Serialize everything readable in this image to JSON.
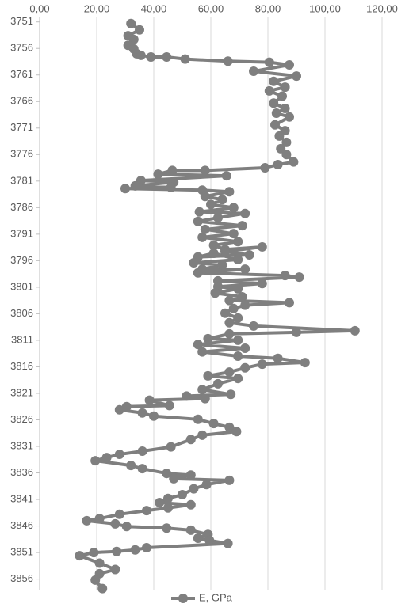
{
  "chart_data": {
    "type": "line",
    "inverted_y": true,
    "grid": "vertical",
    "legend": "bottom",
    "xlim": [
      0,
      120
    ],
    "xticks": [
      {
        "value": 0,
        "label": "0,00"
      },
      {
        "value": 20,
        "label": "20,00"
      },
      {
        "value": 40,
        "label": "40,00"
      },
      {
        "value": 60,
        "label": "60,00"
      },
      {
        "value": 80,
        "label": "80,00"
      },
      {
        "value": 100,
        "label": "100,00"
      },
      {
        "value": 120,
        "label": "120,00"
      }
    ],
    "ylim": [
      3750,
      3858
    ],
    "yticks": [
      3751,
      3756,
      3761,
      3766,
      3771,
      3776,
      3781,
      3786,
      3791,
      3796,
      3801,
      3806,
      3811,
      3816,
      3821,
      3826,
      3831,
      3836,
      3841,
      3846,
      3851,
      3856
    ],
    "series": [
      {
        "name": "E, GPa",
        "color": "#7f7f7f",
        "x": [
          32,
          35,
          31,
          33,
          31,
          33,
          34,
          35.5,
          39,
          44.5,
          51,
          66,
          80.5,
          87.5,
          75,
          90,
          82,
          86,
          80.5,
          85,
          82,
          86,
          83,
          87.5,
          82.5,
          86,
          84,
          86.5,
          84.5,
          86.5,
          89,
          83.5,
          79,
          58,
          46.5,
          41.5,
          65.5,
          35.5,
          47,
          33.5,
          46,
          30,
          57,
          66.5,
          58,
          64,
          60,
          68,
          56,
          72,
          62.5,
          55.5,
          71,
          58,
          68,
          57,
          69.5,
          61,
          65,
          78,
          65,
          73.5,
          55.5,
          61,
          69.5,
          54,
          64,
          57,
          72,
          55.5,
          86,
          91,
          62.5,
          78,
          62.5,
          69.5,
          61.5,
          71,
          66.5,
          87.5,
          72,
          68,
          65,
          69.5,
          66.5,
          75,
          110.5,
          90,
          66.5,
          59,
          69.5,
          55.5,
          72,
          57,
          69.5,
          83.5,
          93,
          78,
          72,
          66.5,
          59,
          69.5,
          62.5,
          57,
          67,
          51.5,
          58,
          38.5,
          45.5,
          30.5,
          28,
          36,
          40,
          55.5,
          61,
          66.5,
          69,
          57,
          53,
          46,
          36,
          28,
          23.5,
          19.5,
          32,
          36,
          44.5,
          53,
          47,
          66.5,
          58.5,
          54,
          50,
          45,
          42,
          53,
          45,
          37.5,
          28,
          21,
          16.5,
          26.5,
          30.5,
          44.5,
          53,
          59,
          55.5,
          59.5,
          66,
          37.5,
          33.5,
          27,
          19,
          14,
          21,
          26.5,
          21,
          19.5,
          22
        ],
        "y": [
          3751.3,
          3752.5,
          3753.6,
          3754.3,
          3755.4,
          3756.1,
          3757,
          3757.3,
          3757.6,
          3757.6,
          3758,
          3758.4,
          3758.6,
          3759.1,
          3760.3,
          3761.2,
          3762.2,
          3763.3,
          3764,
          3765,
          3766.3,
          3767.3,
          3768.2,
          3768.9,
          3770.4,
          3771.5,
          3772.5,
          3773.7,
          3774.9,
          3776,
          3777.4,
          3777.9,
          3778.5,
          3779,
          3779,
          3779.7,
          3780,
          3780.9,
          3781.2,
          3781.9,
          3782.2,
          3782.4,
          3782.7,
          3783,
          3783.9,
          3784.5,
          3785.4,
          3786,
          3786.8,
          3787.1,
          3787.9,
          3788.6,
          3789.4,
          3790.1,
          3790.9,
          3791.6,
          3792.4,
          3793.1,
          3793.9,
          3793.4,
          3794.3,
          3794.9,
          3795.3,
          3794.6,
          3795.8,
          3796.4,
          3796.8,
          3797.6,
          3797.6,
          3798.3,
          3798.8,
          3799.1,
          3799.8,
          3800.3,
          3800.9,
          3801.3,
          3802.1,
          3802.8,
          3803.5,
          3803.9,
          3804.4,
          3805,
          3805.9,
          3806.8,
          3807.7,
          3808.3,
          3809.2,
          3809.5,
          3809.8,
          3810.7,
          3811,
          3811.8,
          3812.5,
          3813.2,
          3814,
          3814.4,
          3815.2,
          3815.5,
          3816.2,
          3817,
          3817.7,
          3818.2,
          3819.2,
          3820.3,
          3821.2,
          3821.5,
          3822,
          3822.3,
          3823.3,
          3823.5,
          3824.1,
          3824.7,
          3825.3,
          3825.9,
          3826.7,
          3827.4,
          3828.2,
          3828.9,
          3829.7,
          3831.1,
          3831.9,
          3832.5,
          3833.1,
          3833.7,
          3834.6,
          3835.2,
          3836.1,
          3836.4,
          3837.1,
          3837.4,
          3838.2,
          3839,
          3840.1,
          3840.8,
          3841.6,
          3842,
          3842.6,
          3843.1,
          3843.8,
          3844.6,
          3845,
          3845.6,
          3846.1,
          3846.4,
          3846.8,
          3847.6,
          3848.3,
          3848.7,
          3849.3,
          3850.1,
          3850.5,
          3850.8,
          3851,
          3851.6,
          3853,
          3854.2,
          3855,
          3856.2,
          3857.8
        ]
      }
    ]
  }
}
